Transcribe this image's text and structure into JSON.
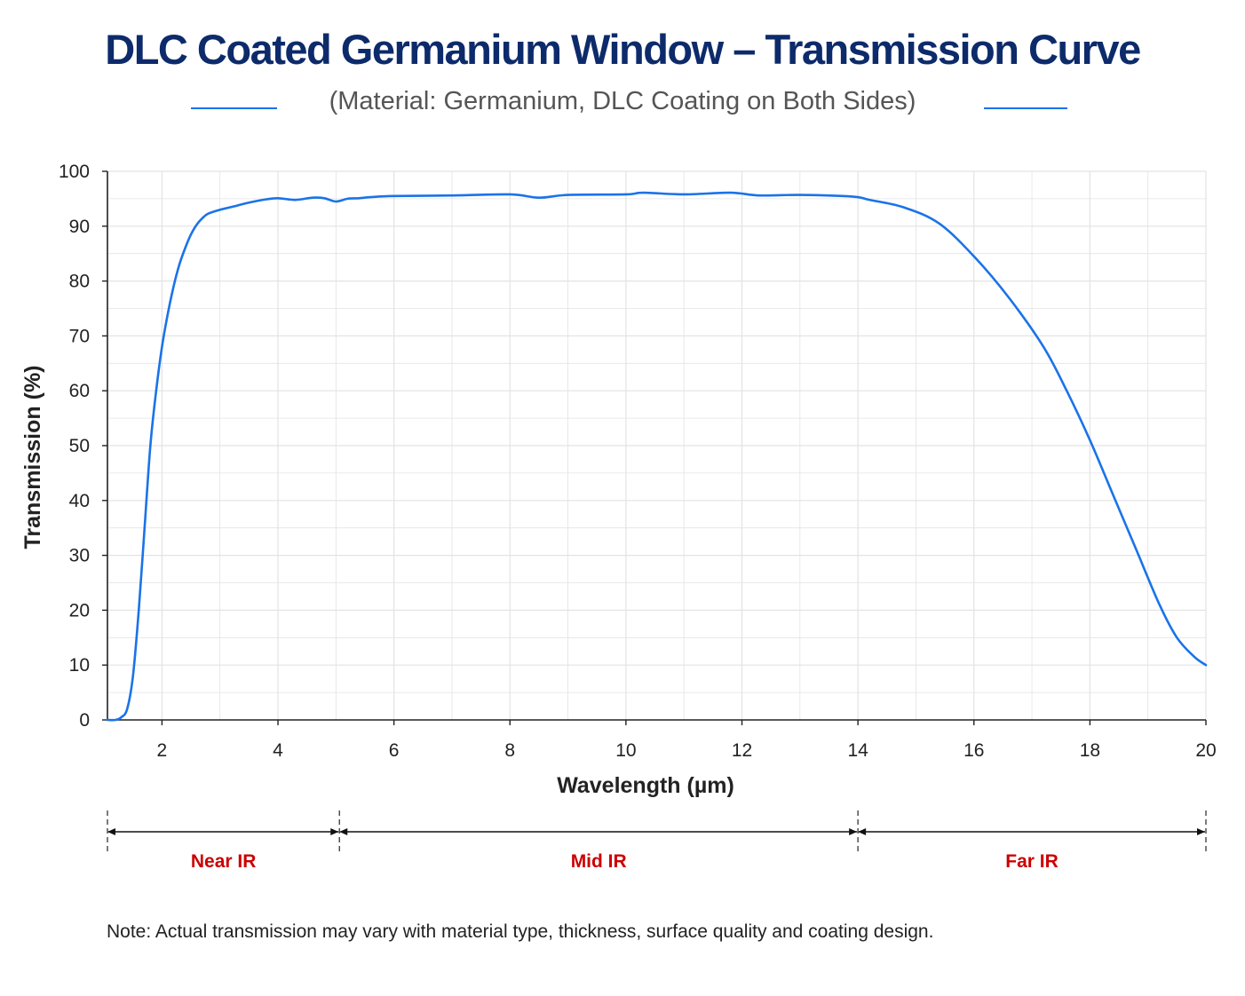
{
  "title": "DLC Coated Germanium Window – Transmission Curve",
  "subtitle": "(Material: Germanium, DLC Coating on Both Sides)",
  "colors": {
    "title": "#0d2b6b",
    "curve": "#1a73e8",
    "region_label": "#cc0000",
    "grid": "#e3e3e3"
  },
  "chart_data": {
    "type": "line",
    "xlabel": "Wavelength (µm)",
    "ylabel": "Transmission (%)",
    "xlim": [
      1.06,
      20
    ],
    "ylim": [
      0,
      100
    ],
    "x_ticks": [
      "2",
      "4",
      "6",
      "8",
      "10",
      "12",
      "14",
      "16",
      "18",
      "20"
    ],
    "y_ticks": [
      "0",
      "10",
      "20",
      "30",
      "40",
      "50",
      "60",
      "70",
      "80",
      "90",
      "100"
    ],
    "grid": true,
    "series": [
      {
        "x": [
          1.06,
          1.2,
          1.3,
          1.4,
          1.5,
          1.6,
          1.7,
          1.8,
          1.9,
          2.0,
          2.1,
          2.2,
          2.3,
          2.4,
          2.5,
          2.6,
          2.7,
          2.8,
          3.0,
          3.2,
          3.5,
          3.8,
          4.0,
          4.3,
          4.6,
          4.8,
          5.0,
          5.2,
          5.4,
          5.6,
          6.0,
          7.0,
          8.0,
          8.5,
          9.0,
          10.0,
          10.3,
          11.0,
          11.8,
          12.3,
          13.0,
          13.9,
          14.2,
          14.8,
          15.4,
          16.0,
          16.6,
          17.2,
          17.6,
          18.0,
          18.4,
          18.8,
          19.2,
          19.5,
          19.8,
          20.0
        ],
        "y": [
          0,
          0,
          0.5,
          2,
          8,
          20,
          35,
          50,
          60,
          68,
          74,
          79,
          83,
          86,
          88.5,
          90.3,
          91.5,
          92.3,
          93,
          93.5,
          94.3,
          94.9,
          95.1,
          94.8,
          95.2,
          95.1,
          94.5,
          95,
          95.1,
          95.3,
          95.5,
          95.6,
          95.8,
          95.2,
          95.7,
          95.8,
          96.1,
          95.8,
          96.1,
          95.6,
          95.7,
          95.4,
          94.8,
          93.4,
          90.5,
          84.5,
          77,
          68,
          60,
          51,
          41,
          31,
          21,
          15,
          11.5,
          10
        ]
      }
    ],
    "regions": [
      {
        "label": "Near IR",
        "start": 1.06,
        "end": 5.06
      },
      {
        "label": "Mid IR",
        "start": 5.06,
        "end": 14.0
      },
      {
        "label": "Far IR",
        "start": 14.0,
        "end": 20.0
      }
    ]
  },
  "note": "Note: Actual transmission may vary with material type, thickness, surface quality and coating design."
}
